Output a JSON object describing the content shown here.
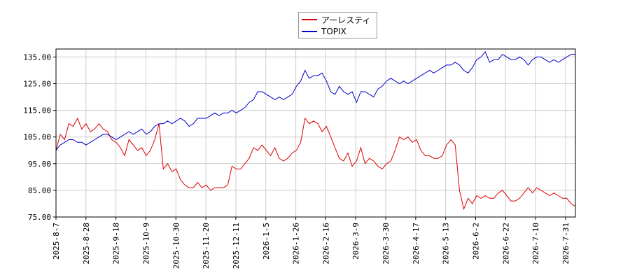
{
  "chart_data": {
    "type": "line",
    "title": "",
    "xlabel": "",
    "ylabel": "",
    "ylim": [
      75,
      138
    ],
    "y_ticks": [
      "75.00",
      "85.00",
      "95.00",
      "105.00",
      "115.00",
      "125.00",
      "135.00"
    ],
    "x_ticks": [
      "2025-8-7",
      "2025-8-28",
      "2025-9-18",
      "2025-10-9",
      "2025-10-30",
      "2025-11-20",
      "2025-12-11",
      "2026-1-5",
      "2026-1-26",
      "2026-2-16",
      "2026-3-9",
      "2026-3-30",
      "2026-4-17",
      "2026-5-13",
      "2026-6-2",
      "2026-6-22",
      "2026-7-10",
      "2026-7-31"
    ],
    "grid": true,
    "legend_position": "top-center",
    "series": [
      {
        "name": "アーレスティ",
        "color": "#dd0000",
        "values": [
          100,
          106,
          104,
          110,
          109,
          112,
          108,
          110,
          107,
          108,
          110,
          108,
          107,
          104,
          103,
          101,
          98,
          104,
          102,
          100,
          101,
          98,
          100,
          104,
          110,
          93,
          95,
          92,
          93,
          89,
          87,
          86,
          86,
          88,
          86,
          87,
          85,
          86,
          86,
          86,
          87,
          94,
          93,
          93,
          95,
          97,
          101,
          100,
          102,
          100,
          98,
          101,
          97,
          96,
          97,
          99,
          100,
          103,
          112,
          110,
          111,
          110,
          107,
          109,
          105,
          101,
          97,
          96,
          99,
          94,
          96,
          101,
          95,
          97,
          96,
          94,
          93,
          95,
          96,
          100,
          105,
          104,
          105,
          103,
          104,
          100,
          98,
          98,
          97,
          97,
          98,
          102,
          104,
          102,
          85,
          78,
          82,
          80,
          83,
          82,
          83,
          82,
          82,
          84,
          85,
          83,
          81,
          81,
          82,
          84,
          86,
          84,
          86,
          85,
          84,
          83,
          84,
          83,
          82,
          82,
          80,
          79
        ],
        "legend_label": "アーレスティ"
      },
      {
        "name": "TOPIX",
        "color": "#0000cc",
        "values": [
          100,
          102,
          103,
          104,
          104,
          103,
          103,
          102,
          103,
          104,
          105,
          106,
          106,
          105,
          104,
          105,
          106,
          107,
          106,
          107,
          108,
          106,
          107,
          109,
          110,
          110,
          111,
          110,
          111,
          112,
          111,
          109,
          110,
          112,
          112,
          112,
          113,
          114,
          113,
          114,
          114,
          115,
          114,
          115,
          116,
          118,
          119,
          122,
          122,
          121,
          120,
          119,
          120,
          119,
          120,
          121,
          124,
          126,
          130,
          127,
          128,
          128,
          129,
          126,
          122,
          121,
          124,
          122,
          121,
          122,
          118,
          122,
          122,
          121,
          120,
          123,
          124,
          126,
          127,
          126,
          125,
          126,
          125,
          126,
          127,
          128,
          129,
          130,
          129,
          130,
          131,
          132,
          132,
          133,
          132,
          130,
          129,
          131,
          134,
          135,
          137,
          133,
          134,
          134,
          136,
          135,
          134,
          134,
          135,
          134,
          132,
          134,
          135,
          135,
          134,
          133,
          134,
          133,
          134,
          135,
          136,
          136
        ]
      }
    ]
  }
}
